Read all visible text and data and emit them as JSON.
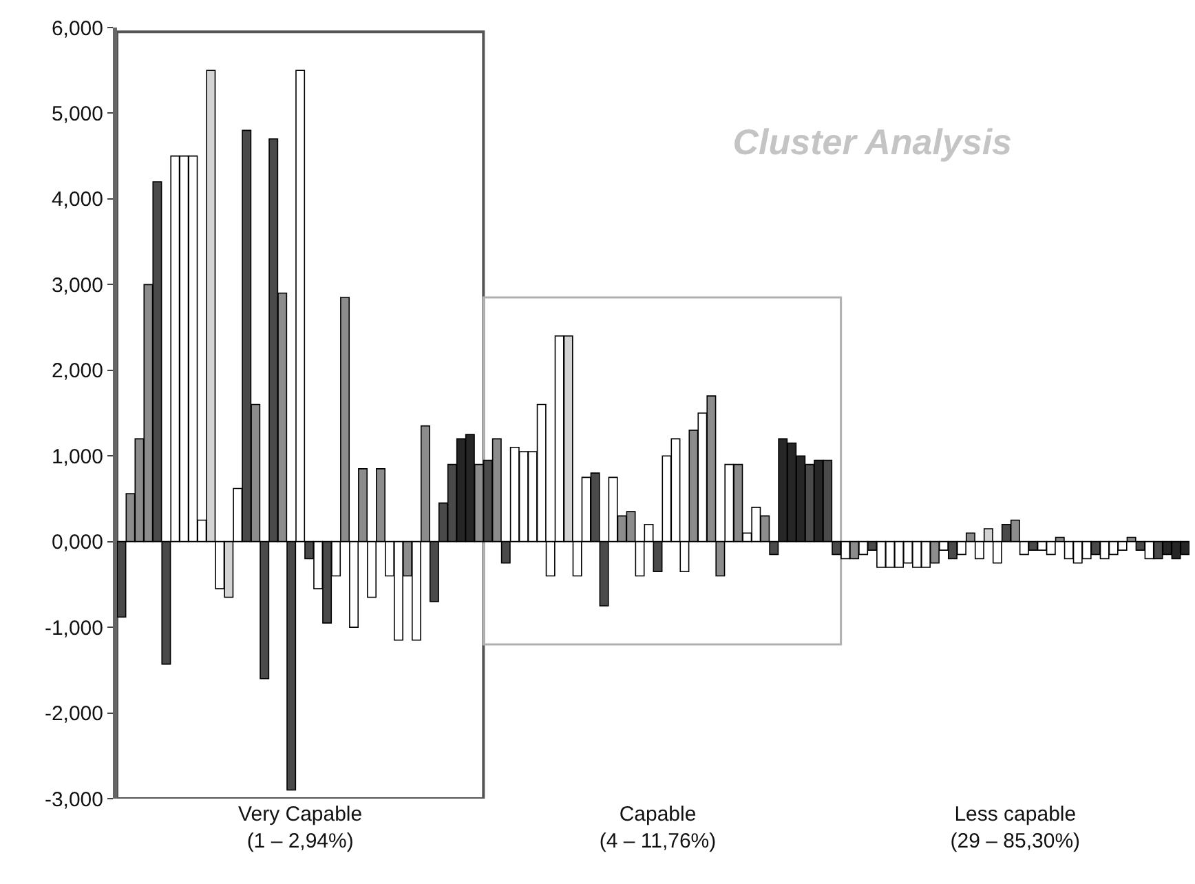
{
  "chart_data": {
    "type": "bar",
    "title": "Cluster Analysis",
    "categories": [
      null,
      null,
      null,
      null,
      null,
      null,
      null,
      null,
      null,
      null,
      null,
      null,
      null,
      null,
      null,
      null,
      null,
      null,
      null,
      null,
      "Very Capable\n(1 – 2,94%)",
      null,
      null,
      null,
      null,
      null,
      null,
      null,
      null,
      null,
      null,
      null,
      null,
      null,
      null,
      null,
      null,
      null,
      null,
      null,
      null,
      null,
      null,
      null,
      null,
      null,
      null,
      null,
      null,
      null,
      null,
      null,
      null,
      null,
      null,
      null,
      null,
      null,
      null,
      null,
      "Capable\n(4 – 11,76%)",
      null,
      null,
      null,
      null,
      null,
      null,
      null,
      null,
      null,
      null,
      null,
      null,
      null,
      null,
      null,
      null,
      null,
      null,
      null,
      null,
      null,
      null,
      null,
      null,
      null,
      null,
      null,
      null,
      null,
      null,
      null,
      null,
      null,
      null,
      null,
      null,
      null,
      null,
      null,
      "Less capable\n(29 – 85,30%)",
      null,
      null,
      null,
      null,
      null,
      null,
      null,
      null,
      null,
      null,
      null,
      null,
      null,
      null,
      null,
      null,
      null,
      null,
      null
    ],
    "values": [
      -0.88,
      0.56,
      1.2,
      3.0,
      4.2,
      -1.43,
      4.5,
      4.5,
      4.5,
      0.25,
      5.5,
      -0.55,
      -0.65,
      0.62,
      4.8,
      1.6,
      -1.6,
      4.7,
      2.9,
      -2.9,
      5.5,
      -0.2,
      -0.55,
      -0.95,
      -0.4,
      2.85,
      -1.0,
      0.85,
      -0.65,
      0.85,
      -0.4,
      -1.15,
      -0.4,
      -1.15,
      1.35,
      -0.7,
      0.45,
      0.9,
      1.2,
      1.25,
      0.9,
      0.95,
      1.2,
      -0.25,
      1.1,
      1.05,
      1.05,
      1.6,
      -0.4,
      2.4,
      2.4,
      -0.4,
      0.75,
      0.8,
      -0.75,
      0.75,
      0.3,
      0.35,
      -0.4,
      0.2,
      -0.35,
      1.0,
      1.2,
      -0.35,
      1.3,
      1.5,
      1.7,
      -0.4,
      0.9,
      0.9,
      0.1,
      0.4,
      0.3,
      -0.15,
      1.2,
      1.15,
      1.0,
      0.9,
      0.95,
      0.95,
      -0.15,
      -0.2,
      -0.2,
      -0.15,
      -0.1,
      -0.3,
      -0.3,
      -0.3,
      -0.25,
      -0.3,
      -0.3,
      -0.25,
      -0.1,
      -0.2,
      -0.15,
      0.1,
      -0.2,
      0.15,
      -0.25,
      0.2,
      0.25,
      -0.15,
      -0.1,
      -0.1,
      -0.15,
      0.05,
      -0.2,
      -0.25,
      -0.2,
      -0.15,
      -0.2,
      -0.15,
      -0.1,
      0.05,
      -0.1,
      -0.2,
      -0.2,
      -0.15,
      -0.2,
      -0.15
    ],
    "colors": [
      "#4a4a4a",
      "#8c8c8c",
      "#8c8c8c",
      "#8c8c8c",
      "#4a4a4a",
      "#4a4a4a",
      "#ffffff",
      "#ffffff",
      "#ffffff",
      "#ffffff",
      "#d3d3d3",
      "#ffffff",
      "#d3d3d3",
      "#ffffff",
      "#4a4a4a",
      "#8c8c8c",
      "#4a4a4a",
      "#4a4a4a",
      "#8c8c8c",
      "#4a4a4a",
      "#ffffff",
      "#4a4a4a",
      "#ffffff",
      "#4a4a4a",
      "#ffffff",
      "#8c8c8c",
      "#ffffff",
      "#8c8c8c",
      "#ffffff",
      "#8c8c8c",
      "#ffffff",
      "#ffffff",
      "#8c8c8c",
      "#ffffff",
      "#8c8c8c",
      "#4a4a4a",
      "#4a4a4a",
      "#4a4a4a",
      "#262626",
      "#262626",
      "#8c8c8c",
      "#4a4a4a",
      "#8c8c8c",
      "#4a4a4a",
      "#ffffff",
      "#ffffff",
      "#ffffff",
      "#ffffff",
      "#ffffff",
      "#ffffff",
      "#d3d3d3",
      "#ffffff",
      "#ffffff",
      "#4a4a4a",
      "#4a4a4a",
      "#ffffff",
      "#8c8c8c",
      "#8c8c8c",
      "#ffffff",
      "#ffffff",
      "#4a4a4a",
      "#ffffff",
      "#ffffff",
      "#ffffff",
      "#8c8c8c",
      "#ffffff",
      "#8c8c8c",
      "#8c8c8c",
      "#ffffff",
      "#8c8c8c",
      "#ffffff",
      "#ffffff",
      "#8c8c8c",
      "#4a4a4a",
      "#262626",
      "#262626",
      "#262626",
      "#4a4a4a",
      "#262626",
      "#4a4a4a",
      "#4a4a4a",
      "#ffffff",
      "#8c8c8c",
      "#ffffff",
      "#4a4a4a",
      "#ffffff",
      "#ffffff",
      "#ffffff",
      "#ffffff",
      "#ffffff",
      "#ffffff",
      "#8c8c8c",
      "#ffffff",
      "#4a4a4a",
      "#ffffff",
      "#8c8c8c",
      "#ffffff",
      "#d3d3d3",
      "#ffffff",
      "#4a4a4a",
      "#8c8c8c",
      "#ffffff",
      "#4a4a4a",
      "#ffffff",
      "#ffffff",
      "#8c8c8c",
      "#ffffff",
      "#ffffff",
      "#ffffff",
      "#4a4a4a",
      "#ffffff",
      "#ffffff",
      "#ffffff",
      "#8c8c8c",
      "#4a4a4a",
      "#ffffff",
      "#4a4a4a",
      "#262626",
      "#262626",
      "#262626"
    ],
    "ylim": [
      -3,
      6
    ],
    "yticks": [
      {
        "value": -3,
        "label": "-3,000"
      },
      {
        "value": -2,
        "label": "-2,000"
      },
      {
        "value": -1,
        "label": "-1,000"
      },
      {
        "value": 0,
        "label": "0,000"
      },
      {
        "value": 1,
        "label": "1,000"
      },
      {
        "value": 2,
        "label": "2,000"
      },
      {
        "value": 3,
        "label": "3,000"
      },
      {
        "value": 4,
        "label": "4,000"
      },
      {
        "value": 5,
        "label": "5,000"
      },
      {
        "value": 6,
        "label": "6,000"
      }
    ],
    "grid": false
  }
}
